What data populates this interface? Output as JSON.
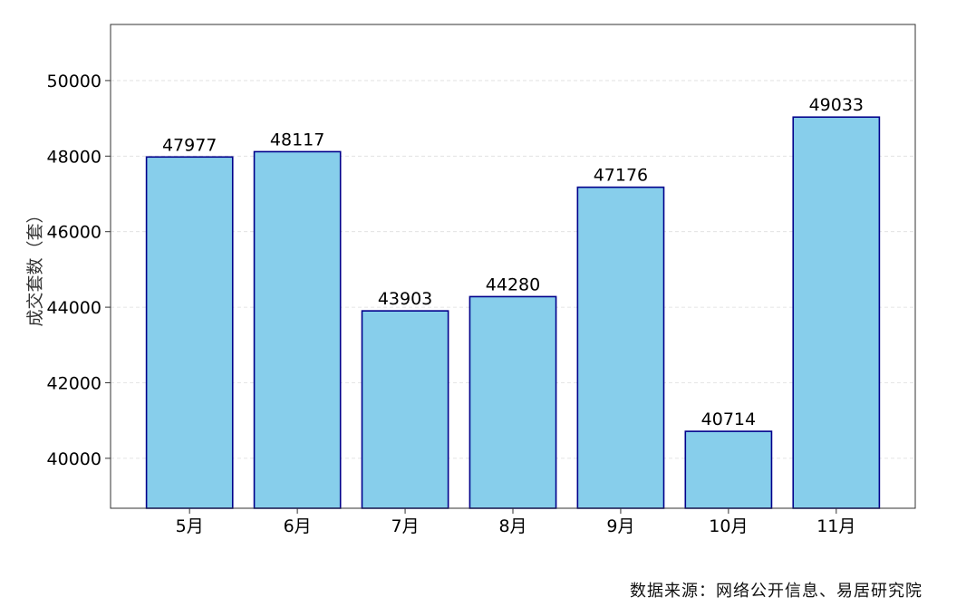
{
  "chart_data": {
    "type": "bar",
    "title": "",
    "xlabel": "",
    "ylabel": "成交套数（套）",
    "categories": [
      "5月",
      "6月",
      "7月",
      "8月",
      "9月",
      "10月",
      "11月"
    ],
    "values": [
      47977,
      48117,
      43903,
      44280,
      47176,
      40714,
      49033
    ],
    "ylim": [
      38678,
      51485
    ],
    "yticks": [
      40000,
      42000,
      44000,
      46000,
      48000,
      50000
    ],
    "grid": "horizontal dashed",
    "data_labels": true,
    "colors": {
      "bar_fill": "#87CEEB",
      "bar_edge": "#00008B",
      "grid": "#dddddd"
    }
  },
  "source_note": "数据来源：网络公开信息、易居研究院"
}
